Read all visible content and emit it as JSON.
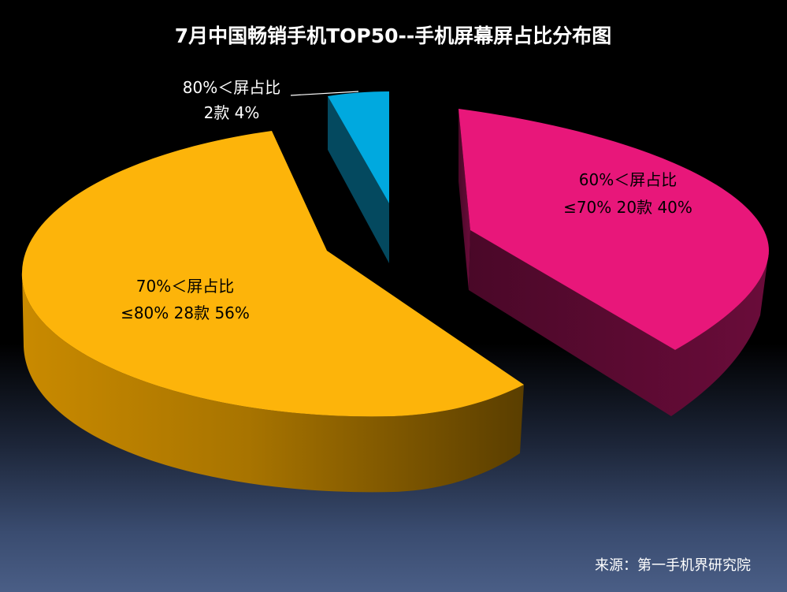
{
  "chart_data": {
    "type": "pie",
    "title": "7月中国畅销手机TOP50--手机屏幕屏占比分布图",
    "slices": [
      {
        "line1": "60%＜屏占比",
        "line2": "≤70% 20款   40%",
        "count": 20,
        "percent": 40,
        "color": "#e8177a",
        "side_color": "#5e0a33"
      },
      {
        "line1": "80%＜屏占比",
        "line2": "2款   4%",
        "count": 2,
        "percent": 4,
        "color": "#00a9df",
        "side_color": "#04495f"
      },
      {
        "line1": "70%＜屏占比",
        "line2": "≤80% 28款   56%",
        "count": 28,
        "percent": 56,
        "color": "#fdb40a",
        "side_color": "#a07000"
      }
    ],
    "legend": "none"
  },
  "source": "来源：第一手机界研究院"
}
